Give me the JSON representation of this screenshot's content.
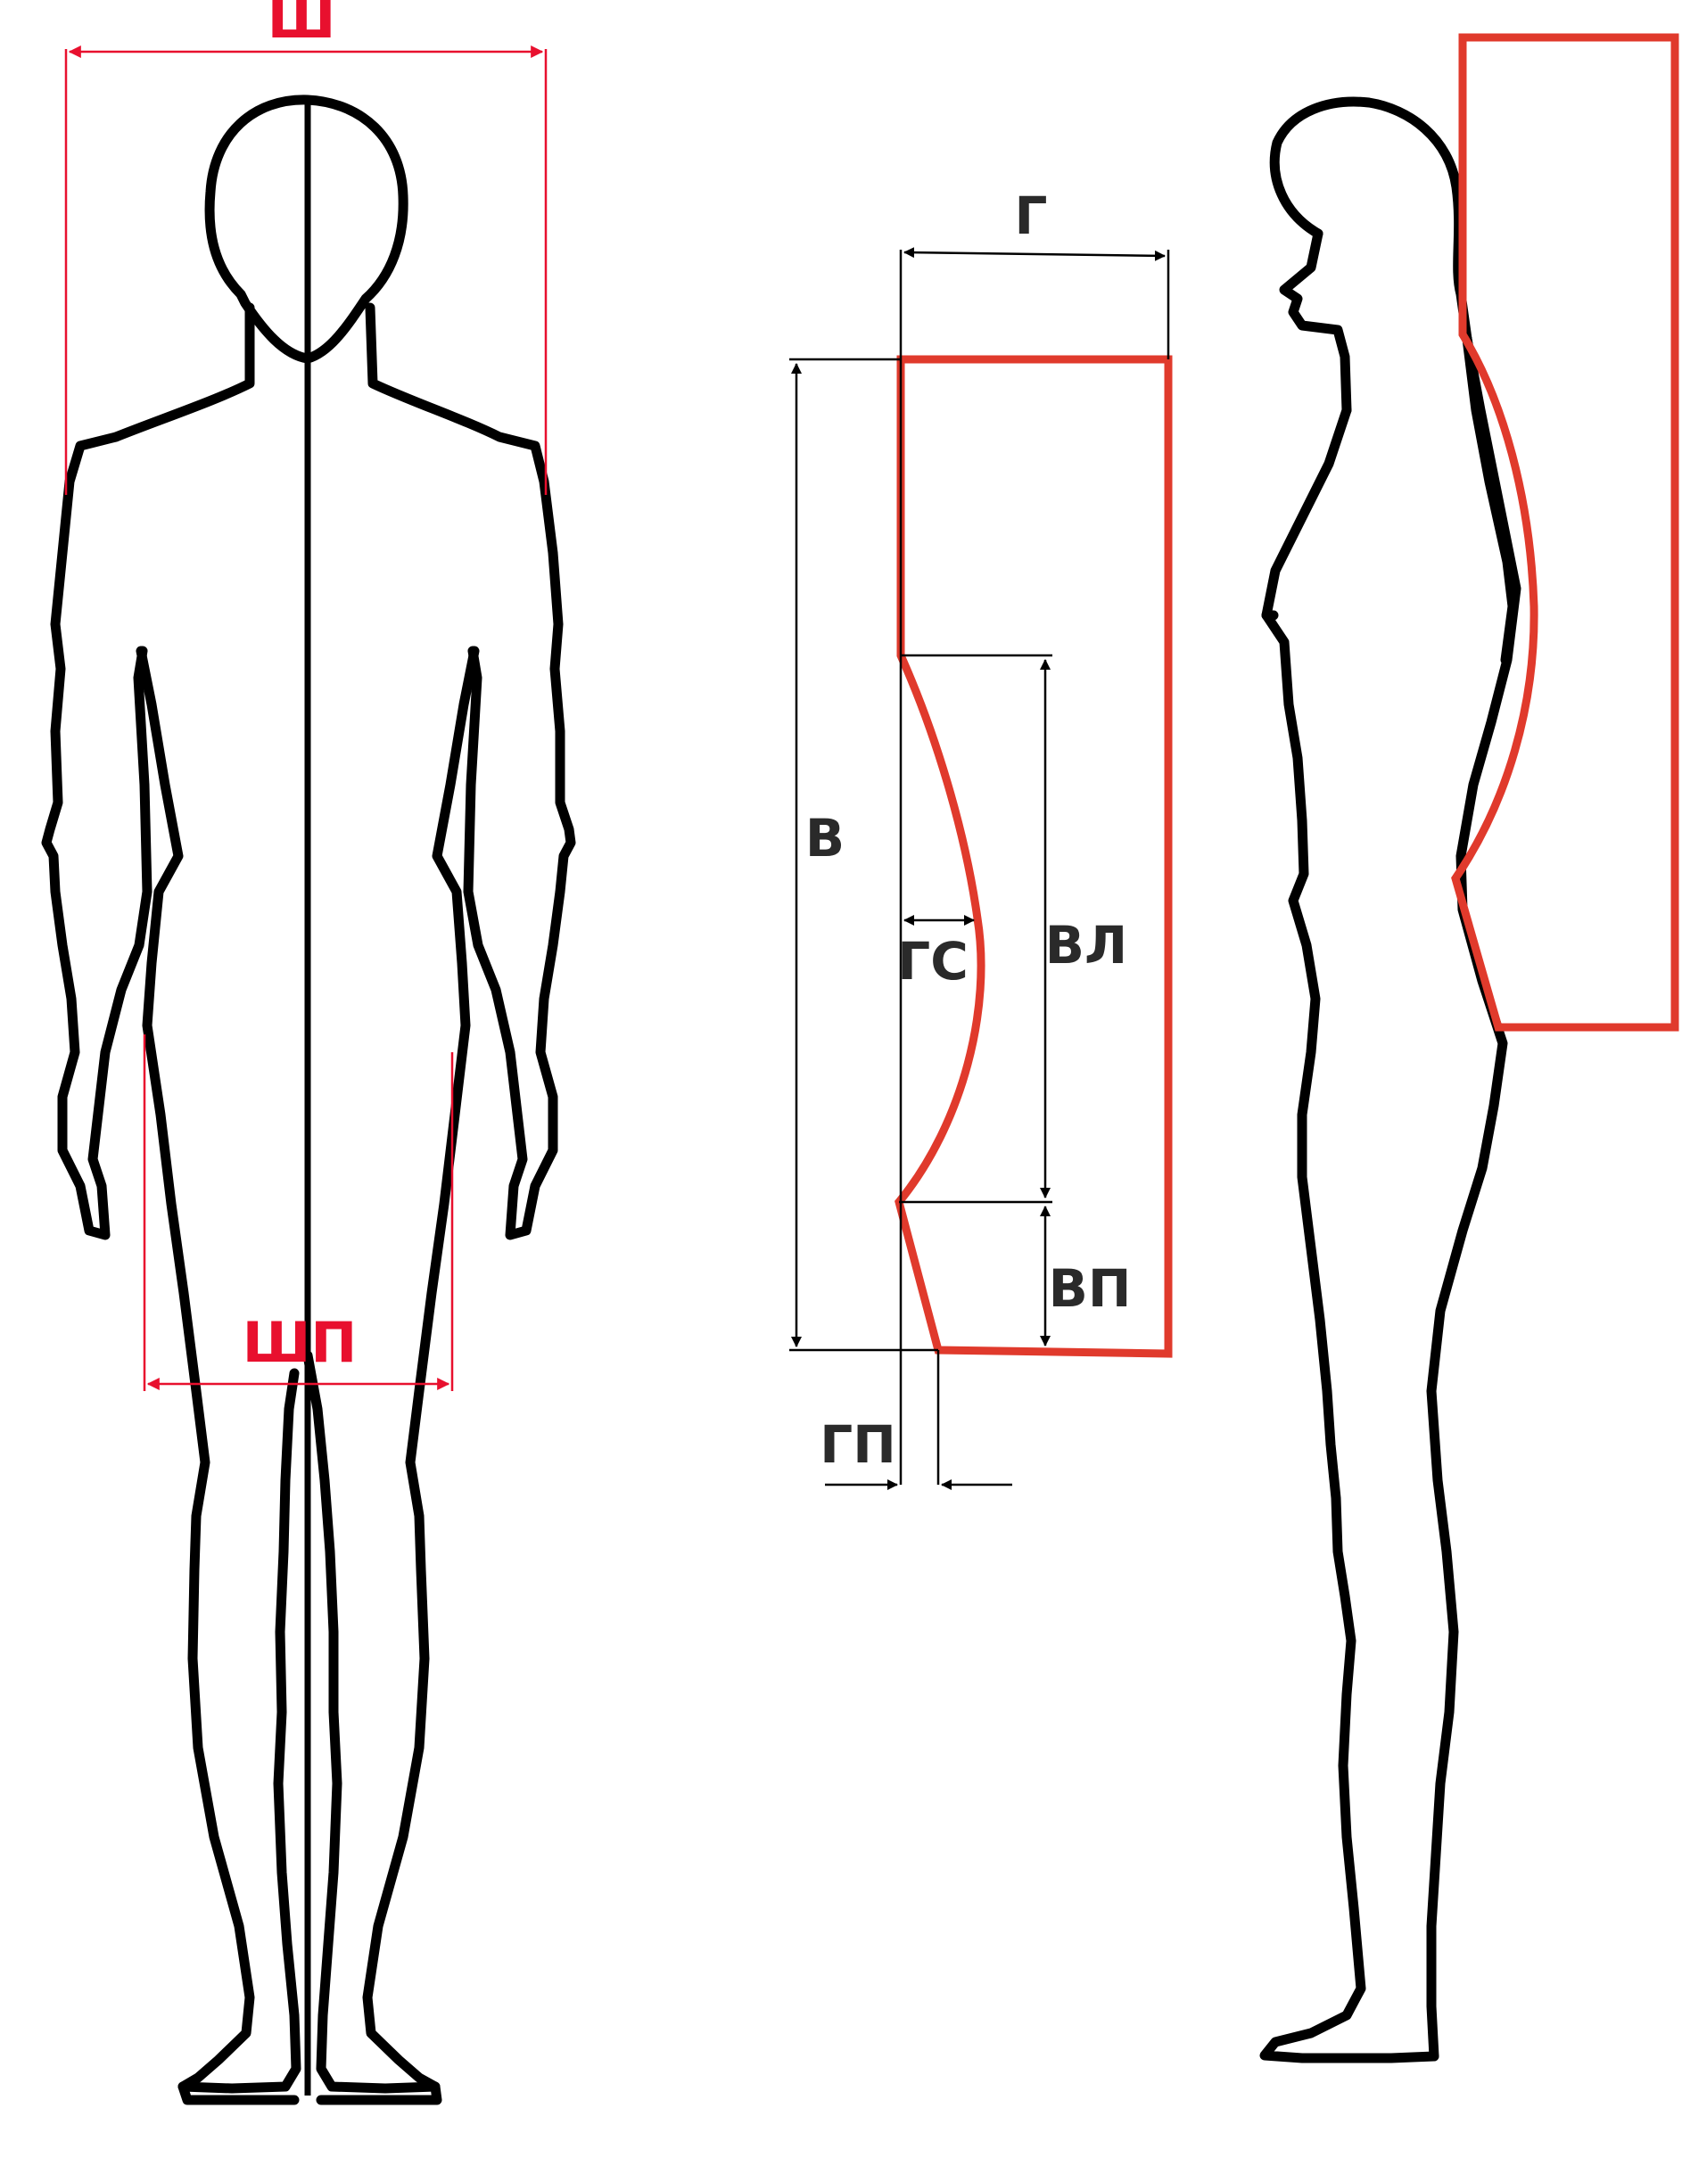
{
  "labels": {
    "sh": "Ш",
    "shp": "ШП",
    "g": "Г",
    "v": "В",
    "vl": "ВЛ",
    "gs": "ГС",
    "vp": "ВП",
    "gp": "ГП"
  },
  "colors": {
    "outline": "#000000",
    "red_dimension": "#e8102e",
    "red_shape": "#e03a2c",
    "label_text": "#2a2a2a"
  }
}
